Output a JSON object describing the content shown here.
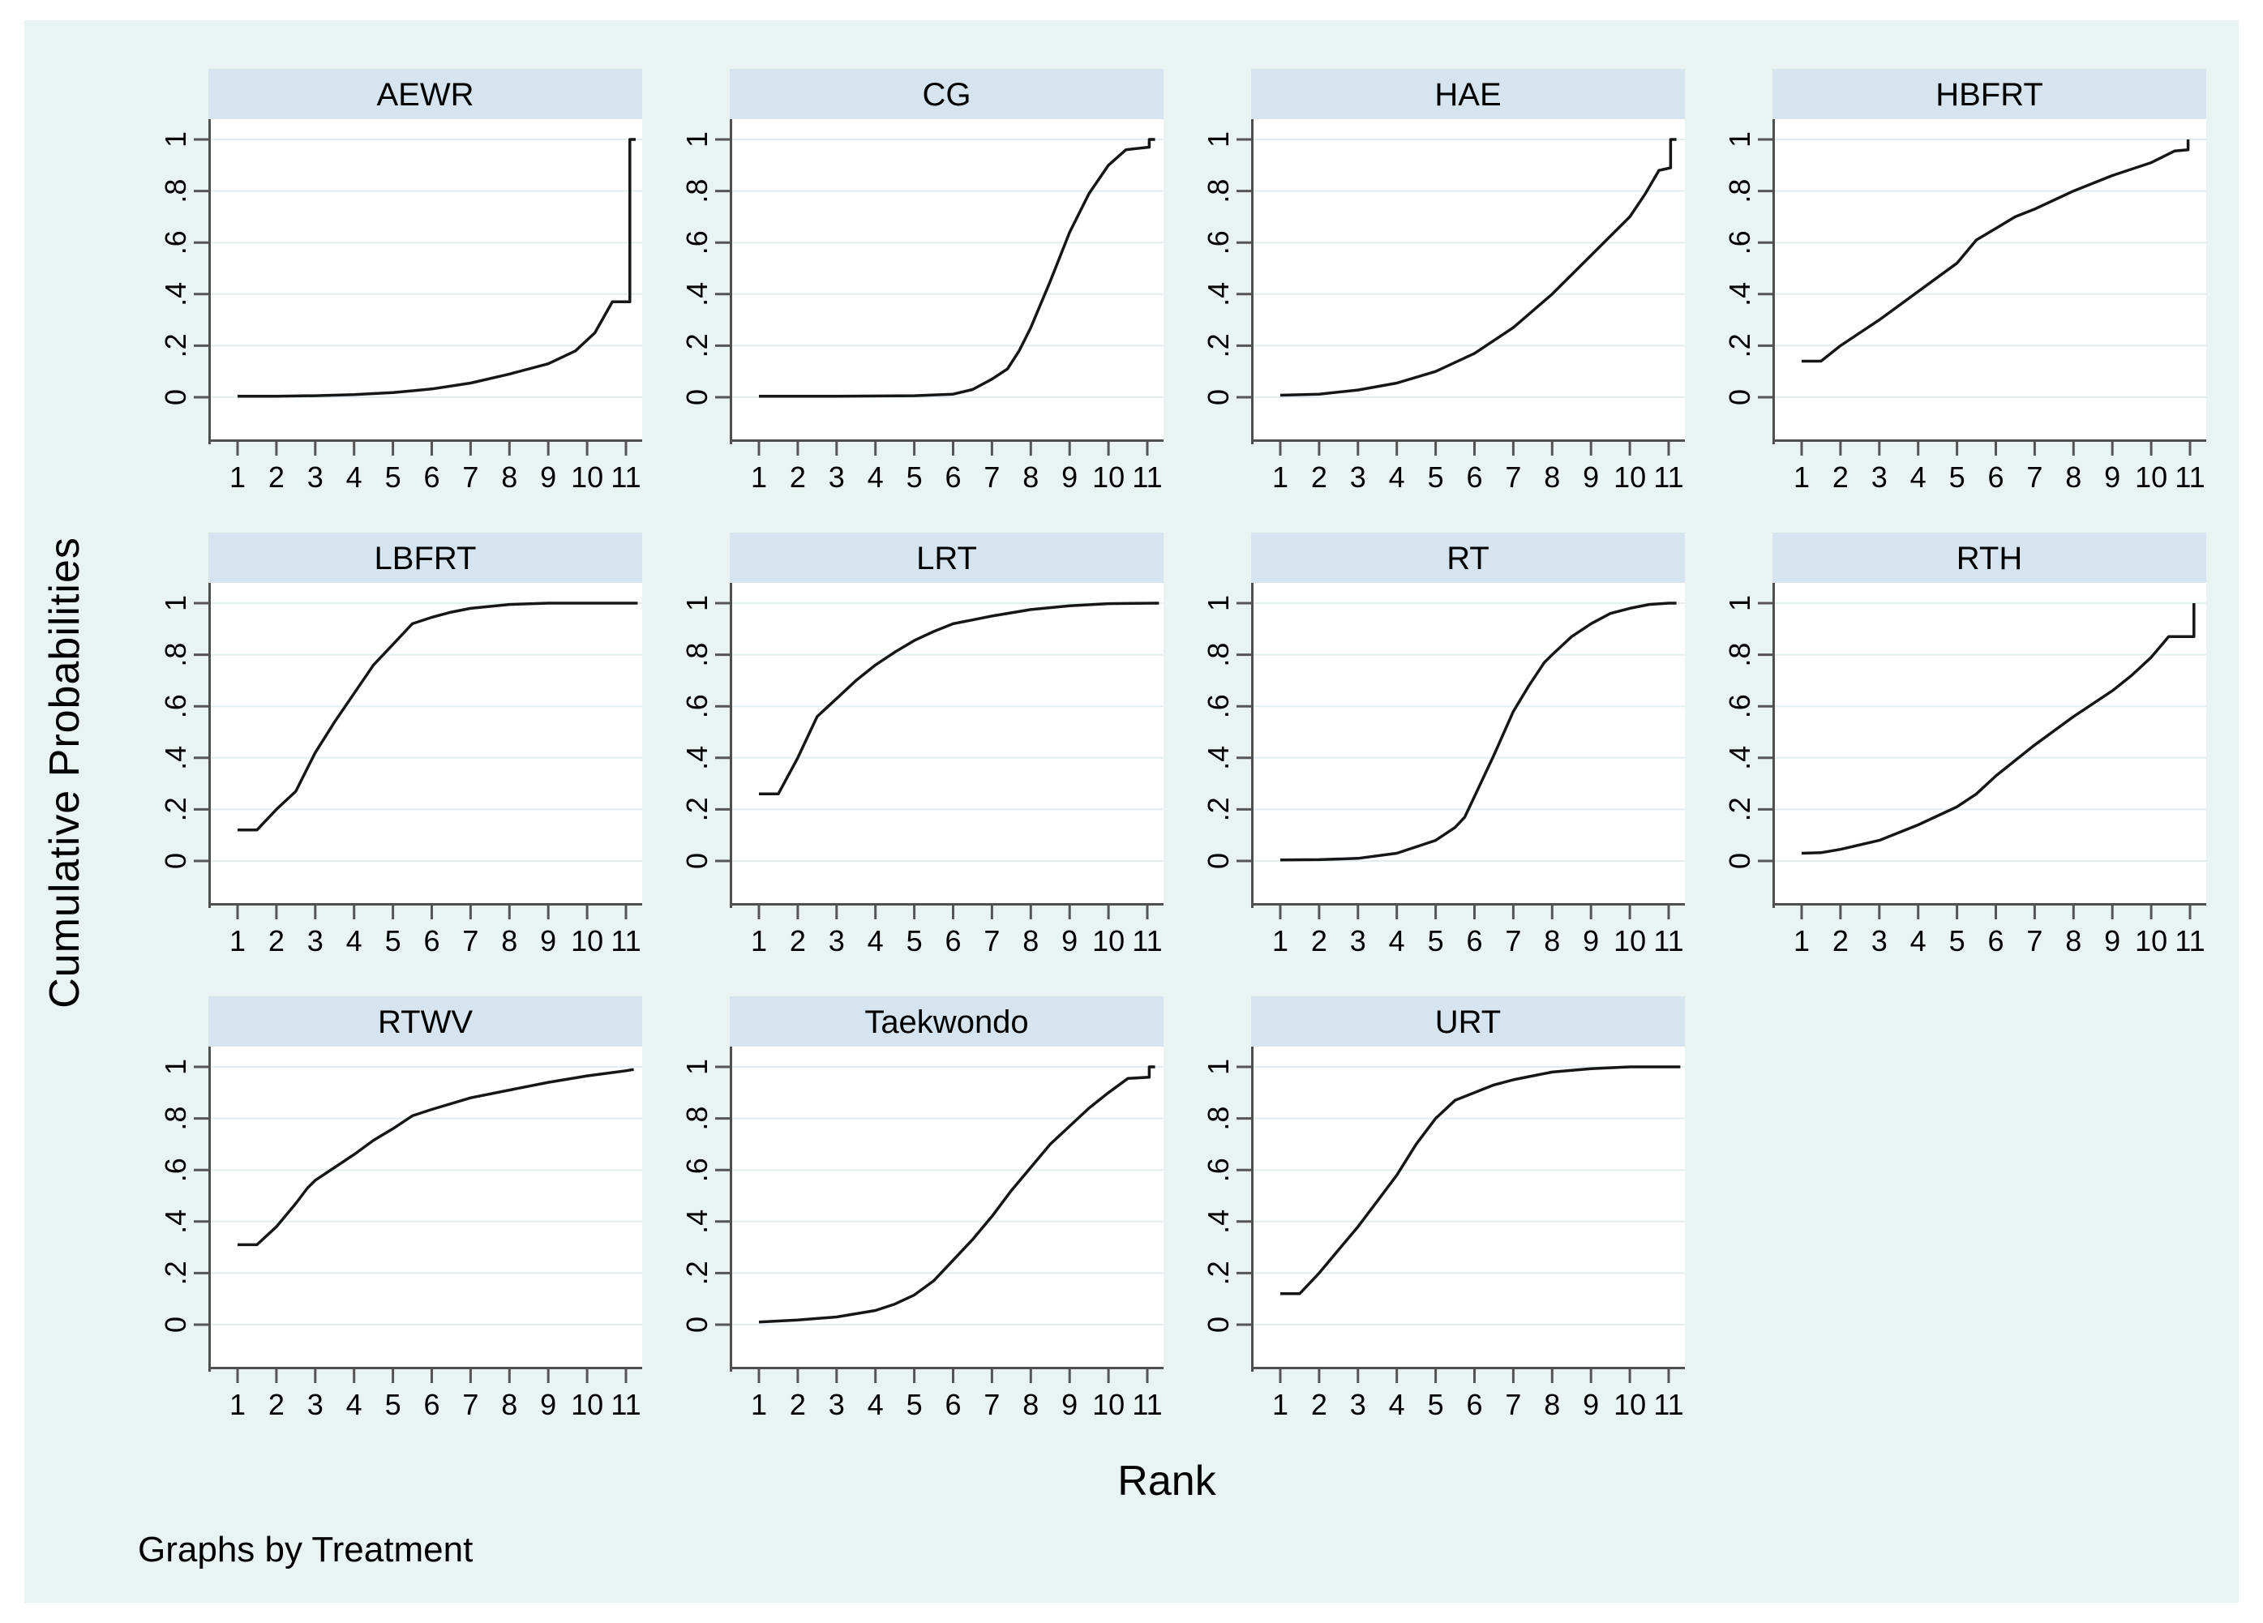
{
  "figure": {
    "colors": {
      "page_background": "#ffffff",
      "figure_background": "#e8f3f2",
      "panel_title_background": "#d5e4ee",
      "plot_background": "#ffffff",
      "gridline": "#e3eef0",
      "axis": "#4f4f4f",
      "tick": "#555555",
      "curve": "#161616",
      "text": "#000000"
    }
  },
  "chart_data": {
    "type": "line",
    "title": "",
    "xlabel": "Rank",
    "ylabel": "Cumulative Probabilities",
    "caption": "Graphs by Treatment",
    "x_ticks": [
      "1",
      "2",
      "3",
      "4",
      "5",
      "6",
      "7",
      "8",
      "9",
      "10",
      "11"
    ],
    "y_ticks": [
      "0",
      ".2",
      ".4",
      ".6",
      ".8",
      "1"
    ],
    "y_tick_values": [
      0,
      0.2,
      0.4,
      0.6,
      0.8,
      1
    ],
    "xlim": [
      0.65,
      11.45
    ],
    "ylim": [
      0,
      1
    ],
    "grid": true,
    "legend_position": "none",
    "panels": [
      {
        "treatment": "AEWR",
        "points": [
          [
            1,
            0.004
          ],
          [
            2,
            0.004
          ],
          [
            3,
            0.006
          ],
          [
            4,
            0.01
          ],
          [
            5,
            0.018
          ],
          [
            6,
            0.032
          ],
          [
            7,
            0.055
          ],
          [
            8,
            0.09
          ],
          [
            9,
            0.13
          ],
          [
            9.7,
            0.18
          ],
          [
            10.2,
            0.25
          ],
          [
            10.65,
            0.37
          ],
          [
            11.1,
            0.37
          ],
          [
            11.1,
            1
          ],
          [
            11.25,
            1
          ]
        ]
      },
      {
        "treatment": "CG",
        "points": [
          [
            1,
            0.004
          ],
          [
            3,
            0.004
          ],
          [
            5,
            0.006
          ],
          [
            6,
            0.012
          ],
          [
            6.5,
            0.03
          ],
          [
            7,
            0.07
          ],
          [
            7.4,
            0.11
          ],
          [
            7.7,
            0.18
          ],
          [
            8,
            0.27
          ],
          [
            8.5,
            0.45
          ],
          [
            9,
            0.64
          ],
          [
            9.5,
            0.79
          ],
          [
            10,
            0.9
          ],
          [
            10.45,
            0.96
          ],
          [
            11.05,
            0.97
          ],
          [
            11.05,
            1
          ],
          [
            11.2,
            1
          ]
        ]
      },
      {
        "treatment": "HAE",
        "points": [
          [
            1,
            0.008
          ],
          [
            2,
            0.012
          ],
          [
            3,
            0.028
          ],
          [
            4,
            0.055
          ],
          [
            5,
            0.1
          ],
          [
            6,
            0.17
          ],
          [
            7,
            0.27
          ],
          [
            8,
            0.4
          ],
          [
            9,
            0.55
          ],
          [
            10,
            0.7
          ],
          [
            10.4,
            0.79
          ],
          [
            10.75,
            0.88
          ],
          [
            11.05,
            0.89
          ],
          [
            11.05,
            1
          ],
          [
            11.2,
            1
          ]
        ]
      },
      {
        "treatment": "HBFRT",
        "points": [
          [
            1,
            0.14
          ],
          [
            1.5,
            0.14
          ],
          [
            2,
            0.2
          ],
          [
            3,
            0.3
          ],
          [
            4,
            0.41
          ],
          [
            5,
            0.52
          ],
          [
            5.5,
            0.61
          ],
          [
            6,
            0.655
          ],
          [
            6.5,
            0.7
          ],
          [
            7,
            0.73
          ],
          [
            8,
            0.8
          ],
          [
            9,
            0.86
          ],
          [
            10,
            0.91
          ],
          [
            10.6,
            0.955
          ],
          [
            10.95,
            0.96
          ],
          [
            10.95,
            1
          ]
        ]
      },
      {
        "treatment": "LBFRT",
        "points": [
          [
            1,
            0.12
          ],
          [
            1.5,
            0.12
          ],
          [
            2,
            0.2
          ],
          [
            2.5,
            0.27
          ],
          [
            3,
            0.42
          ],
          [
            3.5,
            0.54
          ],
          [
            4,
            0.65
          ],
          [
            4.5,
            0.76
          ],
          [
            5,
            0.84
          ],
          [
            5.5,
            0.92
          ],
          [
            6,
            0.945
          ],
          [
            6.5,
            0.965
          ],
          [
            7,
            0.98
          ],
          [
            8,
            0.995
          ],
          [
            9,
            1
          ],
          [
            11.3,
            1
          ]
        ]
      },
      {
        "treatment": "LRT",
        "points": [
          [
            1,
            0.26
          ],
          [
            1.5,
            0.26
          ],
          [
            2,
            0.4
          ],
          [
            2.5,
            0.56
          ],
          [
            3,
            0.63
          ],
          [
            3.5,
            0.7
          ],
          [
            4,
            0.76
          ],
          [
            4.5,
            0.81
          ],
          [
            5,
            0.855
          ],
          [
            5.5,
            0.89
          ],
          [
            6,
            0.92
          ],
          [
            6.5,
            0.935
          ],
          [
            7,
            0.95
          ],
          [
            8,
            0.975
          ],
          [
            9,
            0.99
          ],
          [
            10,
            0.998
          ],
          [
            11.3,
            1
          ]
        ]
      },
      {
        "treatment": "RT",
        "points": [
          [
            1,
            0.004
          ],
          [
            2,
            0.005
          ],
          [
            3,
            0.01
          ],
          [
            4,
            0.03
          ],
          [
            5,
            0.08
          ],
          [
            5.5,
            0.13
          ],
          [
            5.75,
            0.17
          ],
          [
            6,
            0.25
          ],
          [
            6.5,
            0.41
          ],
          [
            7,
            0.58
          ],
          [
            7.4,
            0.68
          ],
          [
            7.8,
            0.77
          ],
          [
            8,
            0.8
          ],
          [
            8.5,
            0.87
          ],
          [
            8.8,
            0.9
          ],
          [
            9,
            0.92
          ],
          [
            9.5,
            0.96
          ],
          [
            10,
            0.98
          ],
          [
            10.5,
            0.995
          ],
          [
            11,
            1
          ],
          [
            11.2,
            1
          ]
        ]
      },
      {
        "treatment": "RTH",
        "points": [
          [
            1,
            0.03
          ],
          [
            1.5,
            0.032
          ],
          [
            2,
            0.045
          ],
          [
            3,
            0.08
          ],
          [
            4,
            0.14
          ],
          [
            5,
            0.21
          ],
          [
            5.5,
            0.26
          ],
          [
            6,
            0.33
          ],
          [
            6.5,
            0.39
          ],
          [
            7,
            0.45
          ],
          [
            8,
            0.56
          ],
          [
            9,
            0.66
          ],
          [
            9.5,
            0.72
          ],
          [
            10,
            0.79
          ],
          [
            10.45,
            0.87
          ],
          [
            11.1,
            0.87
          ],
          [
            11.1,
            1
          ]
        ]
      },
      {
        "treatment": "RTWV",
        "points": [
          [
            1,
            0.31
          ],
          [
            1.5,
            0.31
          ],
          [
            2,
            0.38
          ],
          [
            2.5,
            0.47
          ],
          [
            2.8,
            0.53
          ],
          [
            3,
            0.56
          ],
          [
            3.5,
            0.61
          ],
          [
            4,
            0.66
          ],
          [
            4.5,
            0.715
          ],
          [
            5,
            0.76
          ],
          [
            5.5,
            0.81
          ],
          [
            6,
            0.835
          ],
          [
            7,
            0.88
          ],
          [
            8,
            0.91
          ],
          [
            9,
            0.94
          ],
          [
            10,
            0.965
          ],
          [
            11,
            0.985
          ],
          [
            11.2,
            0.99
          ]
        ]
      },
      {
        "treatment": "Taekwondo",
        "points": [
          [
            1,
            0.01
          ],
          [
            2,
            0.018
          ],
          [
            3,
            0.03
          ],
          [
            4,
            0.055
          ],
          [
            4.5,
            0.08
          ],
          [
            5,
            0.115
          ],
          [
            5.5,
            0.17
          ],
          [
            6,
            0.25
          ],
          [
            6.5,
            0.33
          ],
          [
            7,
            0.42
          ],
          [
            7.5,
            0.52
          ],
          [
            8,
            0.61
          ],
          [
            8.5,
            0.7
          ],
          [
            9,
            0.77
          ],
          [
            9.5,
            0.84
          ],
          [
            10,
            0.9
          ],
          [
            10.5,
            0.955
          ],
          [
            11.05,
            0.96
          ],
          [
            11.05,
            1
          ],
          [
            11.2,
            1
          ]
        ]
      },
      {
        "treatment": "URT",
        "points": [
          [
            1,
            0.12
          ],
          [
            1.5,
            0.12
          ],
          [
            2,
            0.2
          ],
          [
            2.5,
            0.29
          ],
          [
            3,
            0.38
          ],
          [
            3.5,
            0.48
          ],
          [
            4,
            0.58
          ],
          [
            4.5,
            0.7
          ],
          [
            4.8,
            0.76
          ],
          [
            5,
            0.8
          ],
          [
            5.5,
            0.87
          ],
          [
            6,
            0.9
          ],
          [
            6.5,
            0.93
          ],
          [
            7,
            0.95
          ],
          [
            7.5,
            0.965
          ],
          [
            8,
            0.98
          ],
          [
            9,
            0.993
          ],
          [
            10,
            1
          ],
          [
            11.3,
            1
          ]
        ]
      }
    ]
  }
}
